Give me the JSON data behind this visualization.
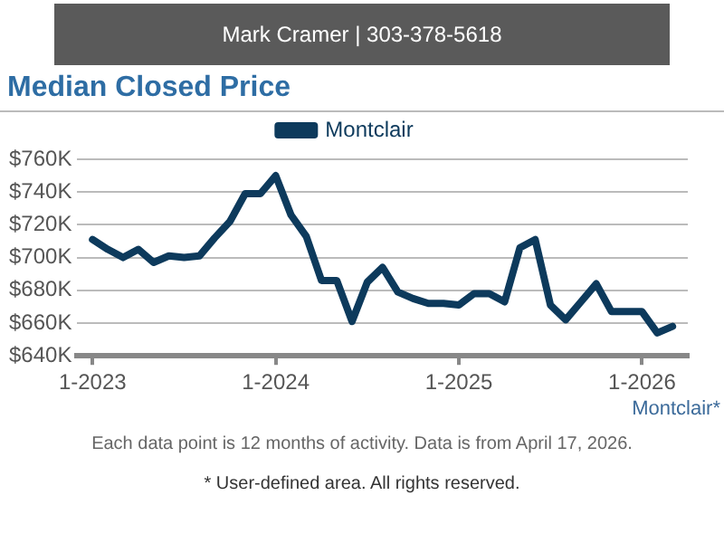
{
  "chart_data": {
    "type": "line",
    "title": "Median Closed Price",
    "annotations": [
      "Mark Cramer | 303-378-5618",
      "Montclair*",
      "Each data point is 12 months of activity. Data is from April 17, 2026.",
      "* User-defined area. All rights reserved."
    ],
    "x": [
      "2023-01",
      "2023-02",
      "2023-03",
      "2023-04",
      "2023-05",
      "2023-06",
      "2023-07",
      "2023-08",
      "2023-09",
      "2023-10",
      "2023-11",
      "2023-12",
      "2024-01",
      "2024-02",
      "2024-03",
      "2024-04",
      "2024-05",
      "2024-06",
      "2024-07",
      "2024-08",
      "2024-09",
      "2024-10",
      "2024-11",
      "2024-12",
      "2025-01",
      "2025-02",
      "2025-03",
      "2025-04",
      "2025-05",
      "2025-06",
      "2025-07",
      "2025-08",
      "2025-09",
      "2025-10",
      "2025-11",
      "2025-12",
      "2026-01",
      "2026-02",
      "2026-03"
    ],
    "series": [
      {
        "name": "Montclair",
        "color": "#0d3a5c",
        "values": [
          711000,
          705000,
          700000,
          705000,
          697000,
          701000,
          700000,
          701000,
          712000,
          722000,
          739000,
          739000,
          750000,
          726000,
          713000,
          686000,
          686000,
          661000,
          685000,
          694000,
          679000,
          675000,
          672000,
          672000,
          671000,
          678000,
          678000,
          673000,
          706000,
          711000,
          671000,
          662000,
          673000,
          684000,
          667000,
          667000,
          667000,
          654000,
          658000
        ]
      }
    ],
    "xlim": [
      "2022-12",
      "2026-04"
    ],
    "xticks": [
      {
        "value": "2023-01",
        "label": "1-2023"
      },
      {
        "value": "2024-01",
        "label": "1-2024"
      },
      {
        "value": "2025-01",
        "label": "1-2025"
      },
      {
        "value": "2026-01",
        "label": "1-2026"
      }
    ],
    "ylim": [
      640000,
      760000
    ],
    "yticks": [
      {
        "value": 640000,
        "label": "$640K"
      },
      {
        "value": 660000,
        "label": "$660K"
      },
      {
        "value": 680000,
        "label": "$680K"
      },
      {
        "value": 700000,
        "label": "$700K"
      },
      {
        "value": 720000,
        "label": "$720K"
      },
      {
        "value": 740000,
        "label": "$740K"
      },
      {
        "value": 760000,
        "label": "$760K"
      }
    ],
    "grid": "y",
    "legend": "top",
    "marker": "none",
    "line_style": "solid"
  }
}
